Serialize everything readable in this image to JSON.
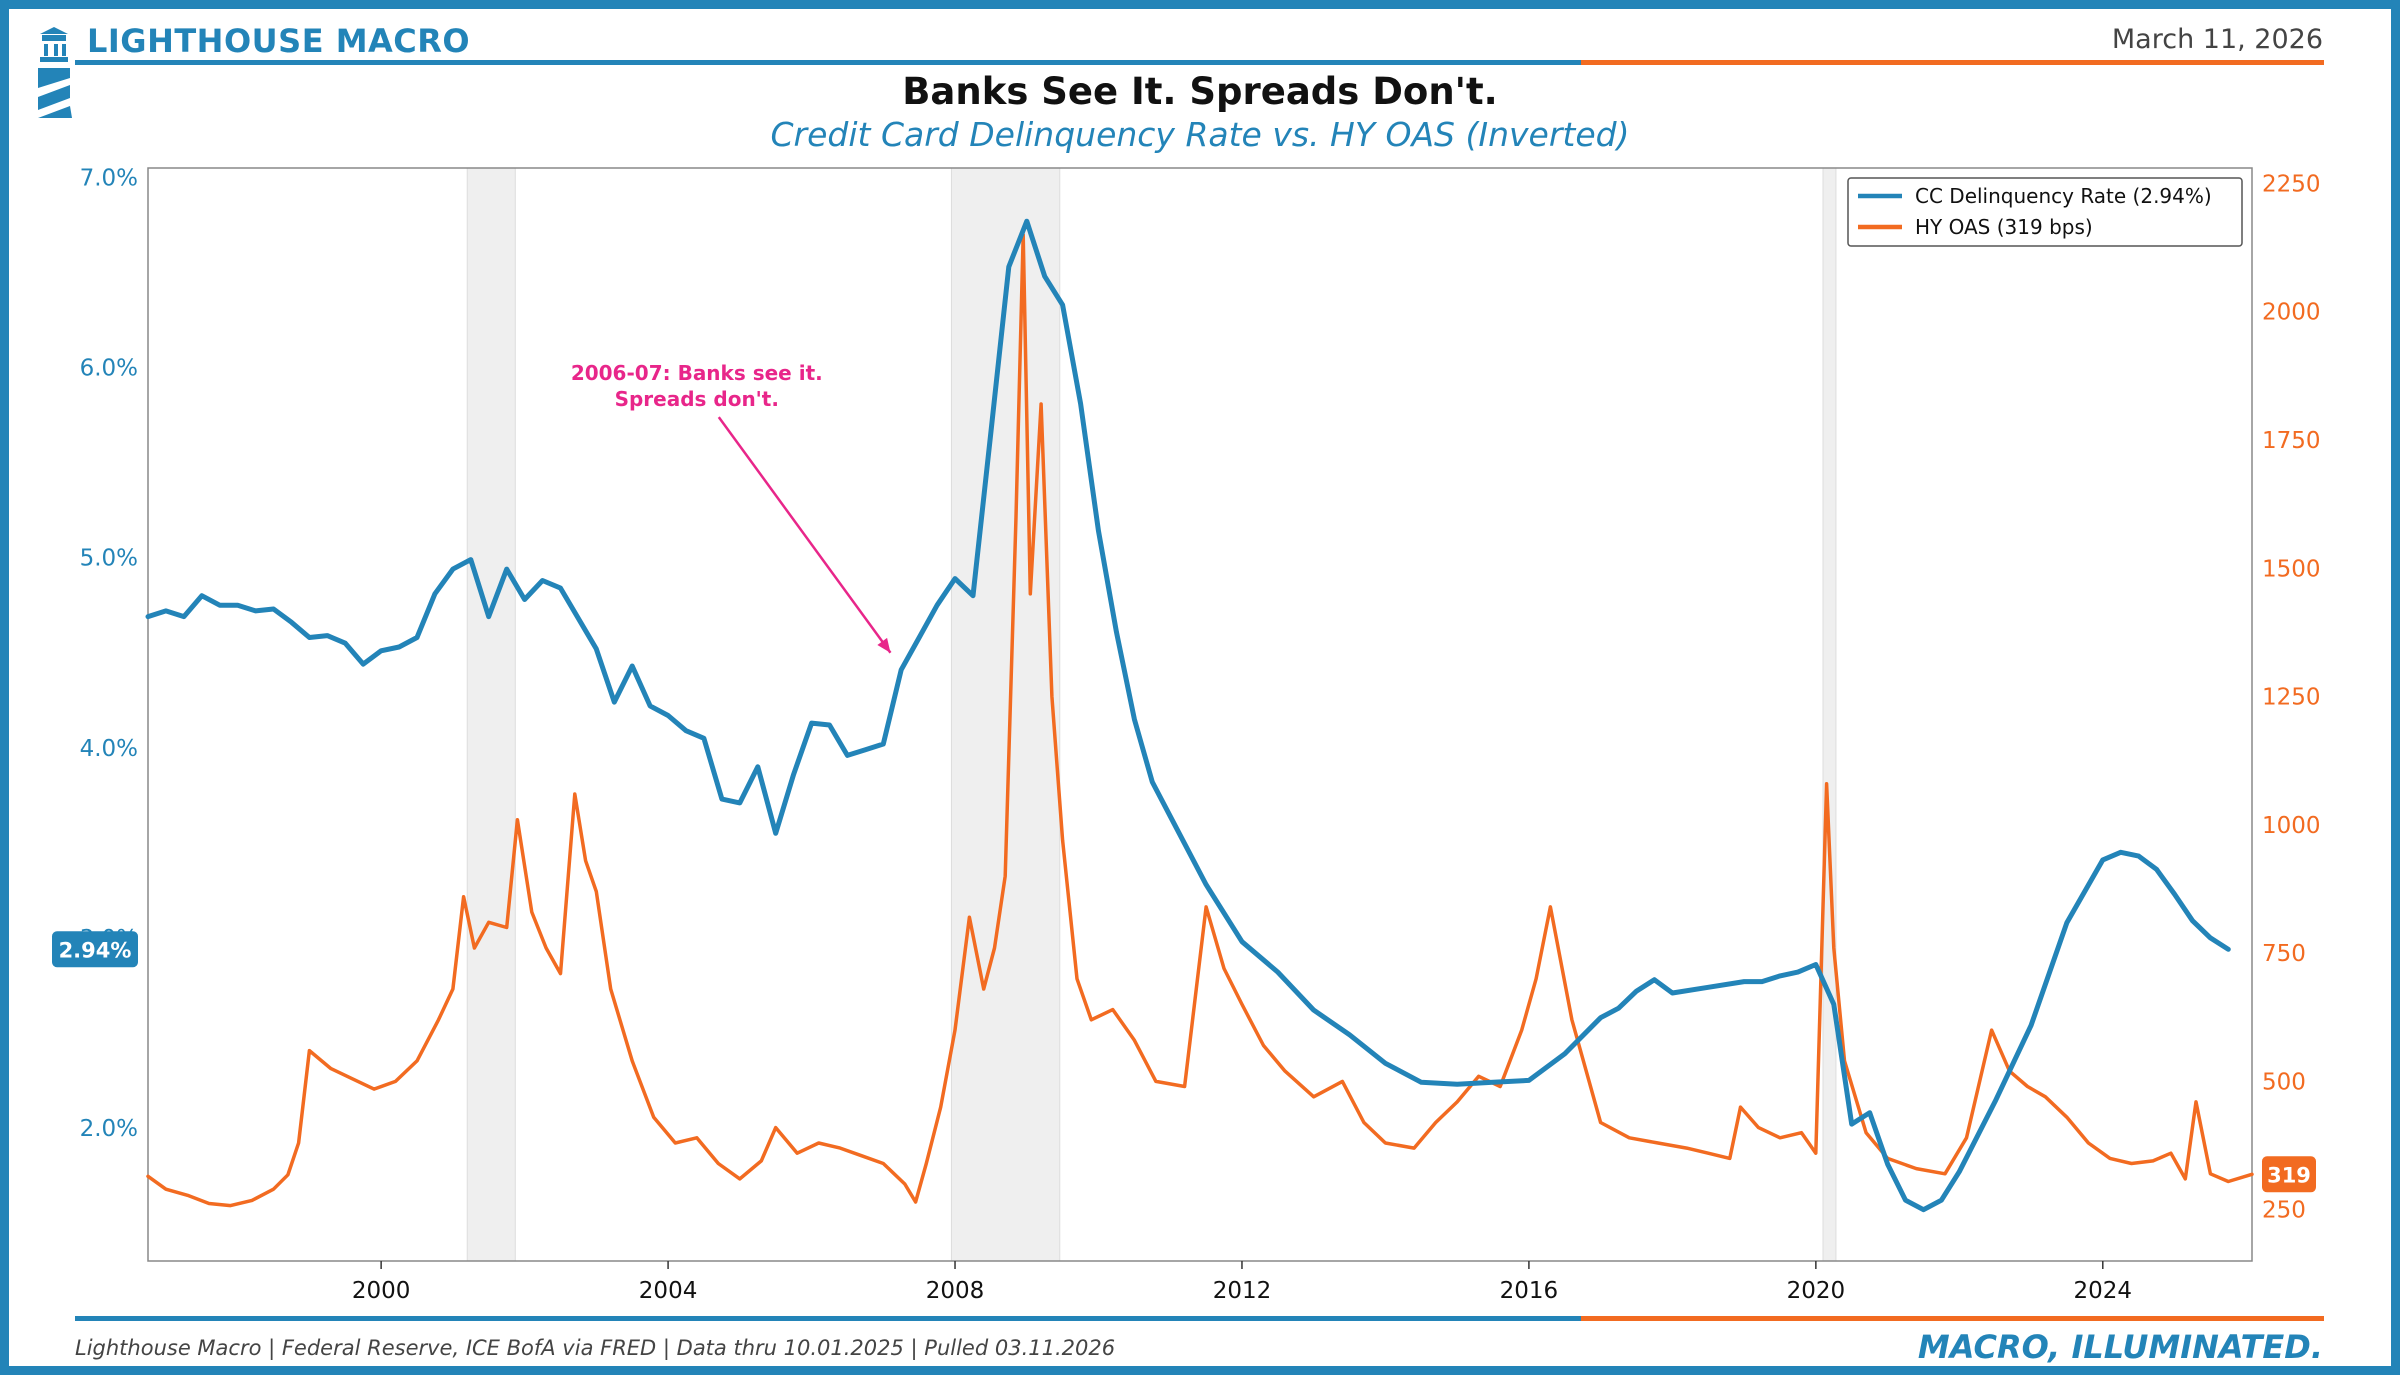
{
  "header": {
    "brand": "LIGHTHOUSE MACRO",
    "date": "March 11, 2026"
  },
  "footer": {
    "source": "Lighthouse Macro | Federal Reserve, ICE BofA via FRED | Data thru 10.01.2025 | Pulled 03.11.2026",
    "tagline": "MACRO, ILLUMINATED."
  },
  "colors": {
    "brand_blue": "#2384b8",
    "accent_orange": "#f26b21",
    "annotation_pink": "#e8268a",
    "recession_shade": "#efefef"
  },
  "icons": [
    "lighthouse-logo-icon"
  ],
  "chart_data": {
    "type": "line",
    "title": "Banks See It. Spreads Don't.",
    "subtitle": "Credit Card Delinquency Rate vs. HY OAS (Inverted)",
    "x_range": [
      1996.75,
      2026.08
    ],
    "x_ticks": [
      2000,
      2004,
      2008,
      2012,
      2016,
      2020,
      2024
    ],
    "y_left": {
      "range": [
        1.3,
        7.05
      ],
      "ticks": [
        2.0,
        3.0,
        4.0,
        5.0,
        6.0,
        7.0
      ],
      "tick_labels": [
        "2.0%",
        "3.0%",
        "4.0%",
        "5.0%",
        "6.0%",
        "7.0%"
      ],
      "color": "#2384b8"
    },
    "y_right": {
      "range": [
        150,
        2280
      ],
      "ticks": [
        250,
        500,
        750,
        1000,
        1250,
        1500,
        1750,
        2000,
        2250
      ],
      "tick_labels": [
        "250",
        "500",
        "750",
        "1000",
        "1250",
        "1500",
        "1750",
        "2000",
        "2250"
      ],
      "color": "#f26b21"
    },
    "recessions": [
      [
        2001.2,
        2001.87
      ],
      [
        2007.95,
        2009.46
      ],
      [
        2020.1,
        2020.28
      ]
    ],
    "legend": {
      "position": "top-right",
      "entries": [
        "CC Delinquency Rate (2.94%)",
        "HY OAS (319 bps)"
      ]
    },
    "latest_labels": {
      "left": "2.94%",
      "right": "319"
    },
    "annotation": {
      "lines": [
        "2006-07: Banks see it.",
        "Spreads don't."
      ],
      "text_at": [
        2004.4,
        5.95
      ],
      "arrow_to": [
        2007.1,
        4.5
      ]
    },
    "series": [
      {
        "name": "CC Delinquency Rate (2.94%)",
        "axis": "left",
        "color": "#2384b8",
        "x": [
          1996.75,
          1997.0,
          1997.25,
          1997.5,
          1997.75,
          1998.0,
          1998.25,
          1998.5,
          1998.75,
          1999.0,
          1999.25,
          1999.5,
          1999.75,
          2000.0,
          2000.25,
          2000.5,
          2000.75,
          2001.0,
          2001.25,
          2001.5,
          2001.75,
          2002.0,
          2002.25,
          2002.5,
          2002.75,
          2003.0,
          2003.25,
          2003.5,
          2003.75,
          2004.0,
          2004.25,
          2004.5,
          2004.75,
          2005.0,
          2005.25,
          2005.5,
          2005.75,
          2006.0,
          2006.25,
          2006.5,
          2006.75,
          2007.0,
          2007.25,
          2007.5,
          2007.75,
          2008.0,
          2008.25,
          2008.5,
          2008.75,
          2009.0,
          2009.25,
          2009.5,
          2009.75,
          2010.0,
          2010.25,
          2010.5,
          2010.75,
          2011.0,
          2011.5,
          2012.0,
          2012.5,
          2013.0,
          2013.5,
          2014.0,
          2014.5,
          2015.0,
          2015.5,
          2016.0,
          2016.5,
          2017.0,
          2017.25,
          2017.5,
          2017.75,
          2018.0,
          2018.5,
          2019.0,
          2019.25,
          2019.5,
          2019.75,
          2020.0,
          2020.25,
          2020.5,
          2020.75,
          2021.0,
          2021.25,
          2021.5,
          2021.75,
          2022.0,
          2022.5,
          2023.0,
          2023.5,
          2024.0,
          2024.25,
          2024.5,
          2024.75,
          2025.0,
          2025.25,
          2025.5,
          2025.75
        ],
        "y": [
          4.69,
          4.72,
          4.69,
          4.8,
          4.75,
          4.75,
          4.72,
          4.73,
          4.66,
          4.58,
          4.59,
          4.55,
          4.44,
          4.51,
          4.53,
          4.58,
          4.81,
          4.94,
          4.99,
          4.69,
          4.94,
          4.78,
          4.88,
          4.84,
          4.68,
          4.52,
          4.24,
          4.43,
          4.22,
          4.17,
          4.09,
          4.05,
          3.73,
          3.71,
          3.9,
          3.55,
          3.86,
          4.13,
          4.12,
          3.96,
          3.99,
          4.02,
          4.41,
          4.58,
          4.75,
          4.89,
          4.8,
          5.66,
          6.53,
          6.77,
          6.48,
          6.33,
          5.81,
          5.14,
          4.61,
          4.15,
          3.82,
          3.64,
          3.28,
          2.98,
          2.82,
          2.62,
          2.49,
          2.34,
          2.24,
          2.23,
          2.24,
          2.25,
          2.39,
          2.58,
          2.63,
          2.72,
          2.78,
          2.71,
          2.74,
          2.77,
          2.77,
          2.8,
          2.82,
          2.86,
          2.65,
          2.02,
          2.08,
          1.81,
          1.62,
          1.57,
          1.62,
          1.77,
          2.14,
          2.54,
          3.08,
          3.41,
          3.45,
          3.43,
          3.36,
          3.23,
          3.09,
          3.0,
          2.94
        ]
      },
      {
        "name": "HY OAS (319 bps)",
        "axis": "right",
        "color": "#f26b21",
        "x": [
          1996.75,
          1997.0,
          1997.3,
          1997.6,
          1997.9,
          1998.2,
          1998.5,
          1998.7,
          1998.85,
          1999.0,
          1999.3,
          1999.6,
          1999.9,
          2000.2,
          2000.5,
          2000.8,
          2001.0,
          2001.15,
          2001.3,
          2001.5,
          2001.75,
          2001.9,
          2002.1,
          2002.3,
          2002.5,
          2002.7,
          2002.85,
          2003.0,
          2003.2,
          2003.5,
          2003.8,
          2004.1,
          2004.4,
          2004.7,
          2005.0,
          2005.3,
          2005.5,
          2005.8,
          2006.1,
          2006.4,
          2006.7,
          2007.0,
          2007.3,
          2007.45,
          2007.6,
          2007.8,
          2008.0,
          2008.2,
          2008.4,
          2008.55,
          2008.7,
          2008.85,
          2008.95,
          2009.05,
          2009.2,
          2009.35,
          2009.5,
          2009.7,
          2009.9,
          2010.2,
          2010.5,
          2010.8,
          2011.2,
          2011.5,
          2011.75,
          2012.0,
          2012.3,
          2012.6,
          2013.0,
          2013.4,
          2013.7,
          2014.0,
          2014.4,
          2014.7,
          2015.0,
          2015.3,
          2015.6,
          2015.9,
          2016.1,
          2016.3,
          2016.6,
          2017.0,
          2017.4,
          2017.8,
          2018.2,
          2018.5,
          2018.8,
          2018.95,
          2019.2,
          2019.5,
          2019.8,
          2020.0,
          2020.15,
          2020.25,
          2020.4,
          2020.7,
          2021.0,
          2021.4,
          2021.8,
          2022.1,
          2022.45,
          2022.7,
          2022.95,
          2023.2,
          2023.5,
          2023.8,
          2024.1,
          2024.4,
          2024.7,
          2024.95,
          2025.15,
          2025.3,
          2025.5,
          2025.75,
          2026.08
        ],
        "y": [
          315,
          290,
          278,
          262,
          258,
          268,
          290,
          318,
          380,
          560,
          525,
          505,
          485,
          500,
          540,
          620,
          680,
          860,
          760,
          810,
          800,
          1010,
          830,
          760,
          710,
          1060,
          930,
          870,
          680,
          540,
          430,
          380,
          390,
          340,
          310,
          345,
          410,
          360,
          380,
          370,
          355,
          340,
          300,
          265,
          340,
          450,
          600,
          820,
          680,
          760,
          900,
          1600,
          2150,
          1450,
          1820,
          1250,
          970,
          700,
          620,
          640,
          580,
          500,
          490,
          840,
          720,
          650,
          570,
          520,
          470,
          500,
          420,
          380,
          370,
          420,
          460,
          510,
          490,
          600,
          700,
          840,
          620,
          420,
          390,
          380,
          370,
          360,
          350,
          450,
          410,
          390,
          400,
          360,
          1080,
          760,
          540,
          400,
          350,
          330,
          320,
          390,
          600,
          520,
          490,
          470,
          430,
          380,
          350,
          340,
          345,
          360,
          310,
          460,
          320,
          305,
          319
        ]
      }
    ]
  }
}
